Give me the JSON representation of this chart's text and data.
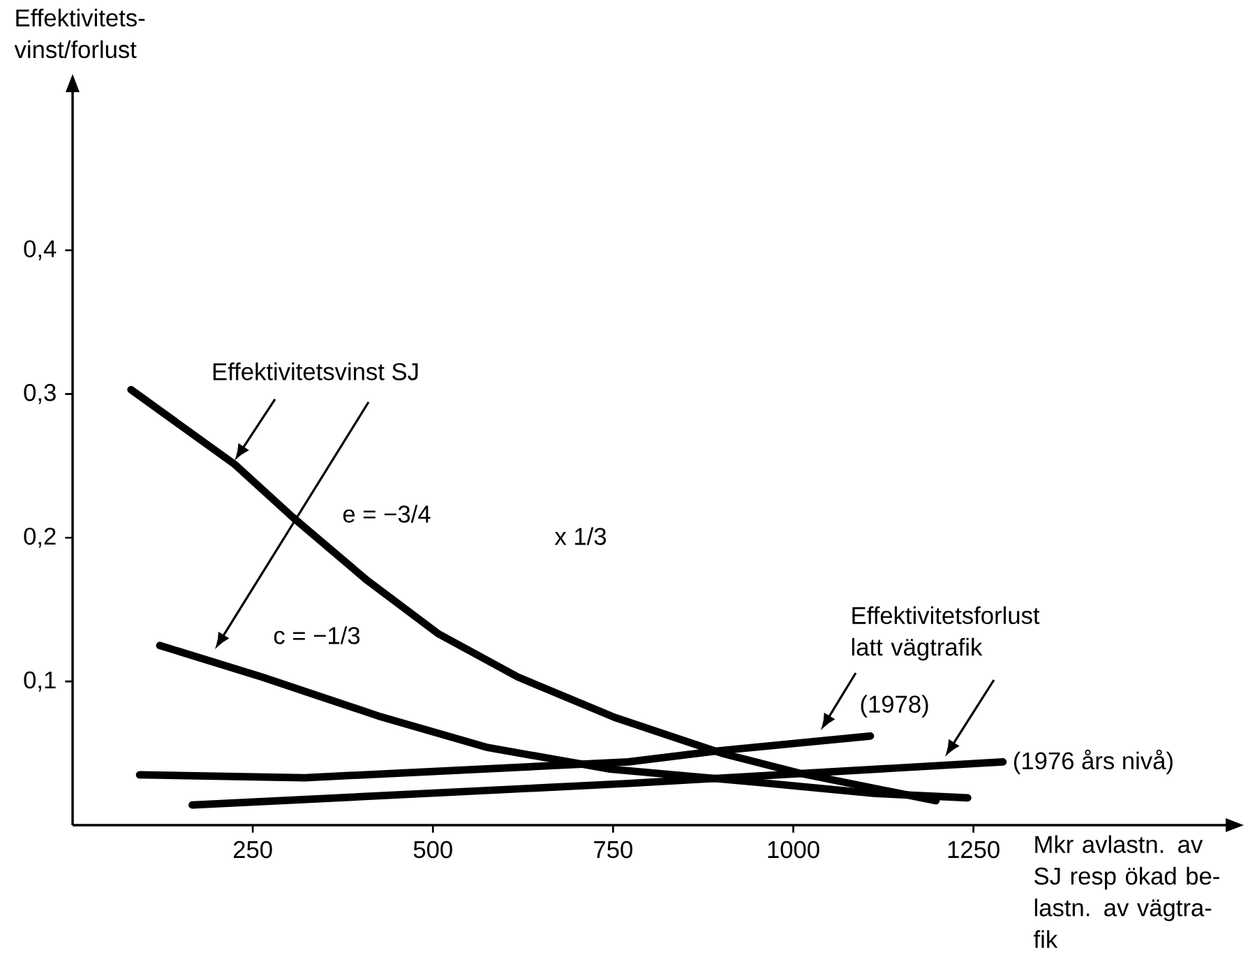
{
  "chart_data": {
    "type": "line",
    "xlabel": "Mkr avlastn. av SJ resp ökad be-lastn. av vägtra-fik",
    "ylabel": "Effektivitets-vinst/forlust",
    "xlim": [
      0,
      1600
    ],
    "ylim": [
      0,
      0.51
    ],
    "xticks": [
      250,
      500,
      750,
      1000,
      1250
    ],
    "yticks": [
      {
        "value": 0.1,
        "label": "0,1"
      },
      {
        "value": 0.2,
        "label": "0,2"
      },
      {
        "value": 0.3,
        "label": "0,3"
      },
      {
        "value": 0.4,
        "label": "0,4"
      }
    ],
    "grid": false,
    "marker": "none",
    "line_style": "solid",
    "series": [
      {
        "color": "#000000",
        "x": [
          81,
          225,
          306,
          407,
          508,
          618,
          752,
          901,
          1010,
          1198
        ],
        "values": [
          0.303,
          0.251,
          0.214,
          0.171,
          0.133,
          0.103,
          0.075,
          0.05,
          0.036,
          0.017
        ]
      },
      {
        "color": "#000000",
        "x": [
          121,
          263,
          424,
          576,
          746,
          946,
          1114,
          1242
        ],
        "values": [
          0.125,
          0.103,
          0.076,
          0.054,
          0.039,
          0.03,
          0.022,
          0.019
        ]
      },
      {
        "color": "#000000",
        "x": [
          93,
          322,
          771,
          901,
          1107
        ],
        "values": [
          0.035,
          0.033,
          0.044,
          0.052,
          0.062
        ]
      },
      {
        "color": "#000000",
        "x": [
          166,
          771,
          1291
        ],
        "values": [
          0.014,
          0.029,
          0.044
        ]
      }
    ],
    "annotations": [
      "Effektivitetsvinst SJ",
      "e = −3/4",
      "x 1/3",
      "c = −1/3",
      "Effektivitetsforlust latt vägtrafik",
      {
        "text": "(1978)",
        "x": 1107,
        "y": 0.062
      },
      {
        "text": "(1976 års nivå)",
        "x": 1291,
        "y": 0.044
      }
    ]
  }
}
